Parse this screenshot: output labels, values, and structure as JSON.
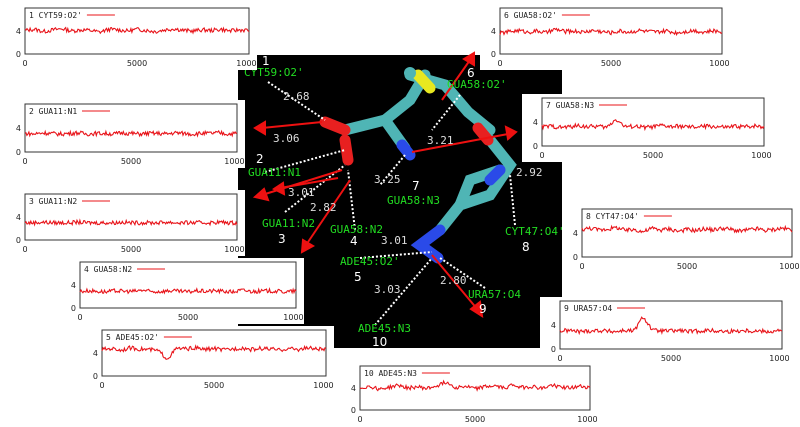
{
  "chart_data": [
    {
      "type": "line",
      "label": "1 CYT59:O2'",
      "y_ticks": [
        "4",
        "0"
      ],
      "x_ticks": [
        "0",
        "5000",
        "10000"
      ],
      "xlim": [
        0,
        10000
      ],
      "ylim": [
        0,
        8
      ],
      "series": [
        {
          "values": [
            4.1,
            4.3,
            3.9,
            4.2,
            4.4,
            4.0,
            4.2,
            4.1,
            3.8,
            4.3,
            4.2,
            4.0,
            4.3,
            4.1,
            3.9,
            4.2,
            4.4,
            4.1,
            4.0,
            4.2,
            4.1,
            4.3,
            4.0,
            4.2,
            4.1
          ]
        }
      ]
    },
    {
      "type": "line",
      "label": "2 GUA11:N1",
      "y_ticks": [
        "4",
        "0"
      ],
      "x_ticks": [
        "0",
        "5000",
        "10000"
      ],
      "xlim": [
        0,
        10000
      ],
      "ylim": [
        0,
        8
      ],
      "series": [
        {
          "values": [
            3.1,
            3.0,
            3.2,
            3.1,
            3.0,
            3.1,
            3.2,
            3.0,
            3.1,
            3.1,
            3.0,
            3.2,
            3.1,
            3.0,
            3.1,
            3.1,
            3.0,
            3.2,
            3.1,
            3.0,
            3.1,
            3.1,
            3.2,
            3.0,
            3.1
          ]
        }
      ]
    },
    {
      "type": "line",
      "label": "3 GUA11:N2",
      "y_ticks": [
        "4",
        "0"
      ],
      "x_ticks": [
        "0",
        "5000",
        "10000"
      ],
      "xlim": [
        0,
        10000
      ],
      "ylim": [
        0,
        8
      ],
      "series": [
        {
          "values": [
            3.0,
            3.0,
            3.1,
            3.0,
            3.0,
            3.0,
            3.1,
            3.0,
            3.0,
            3.0,
            3.0,
            3.1,
            3.0,
            3.0,
            3.0,
            3.0,
            3.1,
            3.0,
            3.0,
            3.0,
            3.0,
            3.0,
            3.1,
            3.0,
            3.0
          ]
        }
      ]
    },
    {
      "type": "line",
      "label": "4 GUA58:N2",
      "y_ticks": [
        "4",
        "0"
      ],
      "x_ticks": [
        "0",
        "5000",
        "10000"
      ],
      "xlim": [
        0,
        10000
      ],
      "ylim": [
        0,
        8
      ],
      "series": [
        {
          "values": [
            2.9,
            3.0,
            2.9,
            2.8,
            3.0,
            2.9,
            2.9,
            3.1,
            2.8,
            2.9,
            3.0,
            2.9,
            2.8,
            3.0,
            2.9,
            3.0,
            2.9,
            2.8,
            3.1,
            2.9,
            2.9,
            3.0,
            2.9,
            2.8,
            3.0
          ]
        }
      ]
    },
    {
      "type": "line",
      "label": "5 ADE45:O2'",
      "y_ticks": [
        "4",
        "0"
      ],
      "x_ticks": [
        "0",
        "5000",
        "10000"
      ],
      "xlim": [
        0,
        10000
      ],
      "ylim": [
        0,
        8
      ],
      "series": [
        {
          "values": [
            4.6,
            4.8,
            4.5,
            4.9,
            4.7,
            4.6,
            4.4,
            3.0,
            4.8,
            4.7,
            4.9,
            4.6,
            4.8,
            4.5,
            4.7,
            4.9,
            4.6,
            4.8,
            4.7,
            4.5,
            4.8,
            4.6,
            4.9,
            4.7,
            4.6
          ]
        }
      ]
    },
    {
      "type": "line",
      "label": "6 GUA58:O2'",
      "y_ticks": [
        "4",
        "0"
      ],
      "x_ticks": [
        "0",
        "5000",
        "10000"
      ],
      "xlim": [
        0,
        10000
      ],
      "ylim": [
        0,
        8
      ],
      "series": [
        {
          "values": [
            3.6,
            3.9,
            4.1,
            3.8,
            4.0,
            3.7,
            4.3,
            3.9,
            4.0,
            3.8,
            4.1,
            3.9,
            3.7,
            4.0,
            3.8,
            4.1,
            3.9,
            3.8,
            4.0,
            3.7,
            3.9,
            4.1,
            3.8,
            4.0,
            3.9
          ]
        }
      ]
    },
    {
      "type": "line",
      "label": "7 GUA58:N3",
      "y_ticks": [
        "4",
        "0"
      ],
      "x_ticks": [
        "0",
        "5000",
        "10000"
      ],
      "xlim": [
        0,
        10000
      ],
      "ylim": [
        0,
        8
      ],
      "series": [
        {
          "values": [
            3.2,
            3.3,
            3.1,
            3.2,
            3.4,
            3.2,
            3.3,
            3.1,
            4.5,
            3.2,
            3.3,
            3.1,
            3.2,
            3.4,
            3.2,
            3.3,
            3.1,
            3.2,
            3.3,
            3.2,
            3.1,
            3.3,
            3.2,
            3.4,
            3.2
          ]
        }
      ]
    },
    {
      "type": "line",
      "label": "8 CYT47:O4'",
      "y_ticks": [
        "4",
        "0"
      ],
      "x_ticks": [
        "0",
        "5000",
        "10000"
      ],
      "xlim": [
        0,
        10000
      ],
      "ylim": [
        0,
        8
      ],
      "series": [
        {
          "values": [
            4.6,
            4.8,
            4.5,
            4.7,
            4.9,
            4.4,
            4.6,
            4.2,
            4.8,
            4.5,
            4.7,
            4.3,
            4.6,
            4.4,
            4.7,
            4.5,
            4.8,
            4.6,
            4.3,
            4.5,
            4.7,
            4.4,
            4.6,
            4.8,
            4.5
          ]
        }
      ]
    },
    {
      "type": "line",
      "label": "9 URA57:O4",
      "y_ticks": [
        "4",
        "0"
      ],
      "x_ticks": [
        "0",
        "5000",
        "10000"
      ],
      "xlim": [
        0,
        10000
      ],
      "ylim": [
        0,
        8
      ],
      "series": [
        {
          "values": [
            3.0,
            3.1,
            2.9,
            3.0,
            3.1,
            3.0,
            2.9,
            3.1,
            3.0,
            5.4,
            3.1,
            3.0,
            3.0,
            3.1,
            2.9,
            3.0,
            3.1,
            3.0,
            2.9,
            3.0,
            3.1,
            3.0,
            3.0,
            2.9,
            3.1
          ]
        }
      ]
    },
    {
      "type": "line",
      "label": "10 ADE45:N3",
      "y_ticks": [
        "4",
        "0"
      ],
      "x_ticks": [
        "0",
        "5000",
        "10000"
      ],
      "xlim": [
        0,
        10000
      ],
      "ylim": [
        0,
        8
      ],
      "series": [
        {
          "values": [
            4.0,
            4.3,
            3.8,
            4.1,
            4.5,
            4.0,
            4.2,
            3.9,
            4.4,
            5.1,
            4.1,
            4.3,
            3.9,
            4.2,
            4.4,
            4.0,
            4.6,
            4.1,
            4.3,
            3.9,
            4.5,
            4.2,
            4.0,
            4.3,
            4.1
          ]
        }
      ]
    }
  ],
  "structure": {
    "labels": [
      "CYT59:O2'",
      "GUA11:N1",
      "GUA11:N2",
      "GUA58:N2",
      "ADE45:O2'",
      "GUA58:O2'",
      "GUA58:N3",
      "CYT47:O4'",
      "URA57:O4",
      "ADE45:N3"
    ],
    "distances": [
      "2.68",
      "3.06",
      "3.01",
      "2.82",
      "3.01",
      "3.03",
      "3.21",
      "3.25",
      "2.92",
      "2.80"
    ],
    "numbers": [
      "1",
      "2",
      "3",
      "4",
      "5",
      "6",
      "7",
      "8",
      "9",
      "10"
    ]
  },
  "colors": {
    "series": "#e8141a",
    "label": "#22dd22",
    "bond": "#4fb5b5",
    "oxygen": "#e82020",
    "nitrogen": "#2a4ae8",
    "sulfur": "#e8e820",
    "distance": "#dddddd"
  }
}
